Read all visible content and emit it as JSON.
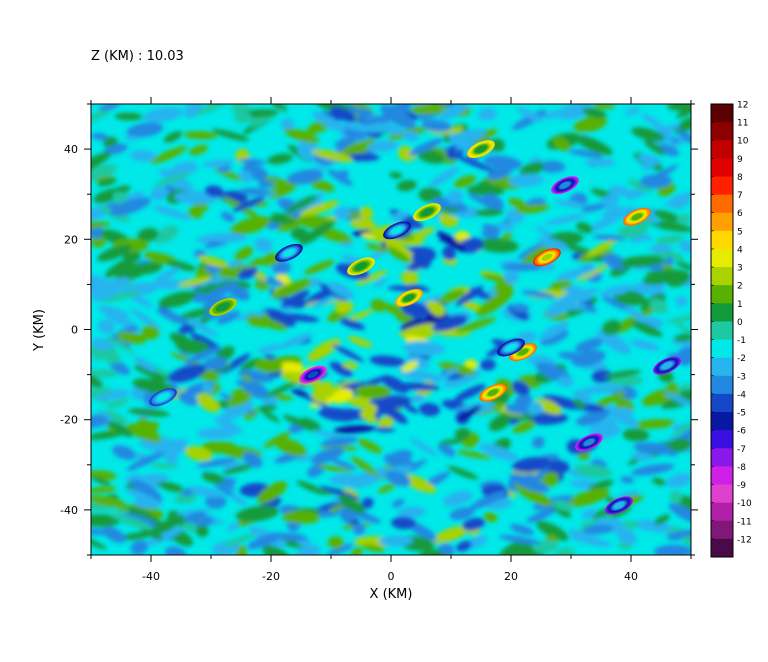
{
  "chart_data": {
    "type": "heatmap",
    "title": "Z (KM) : 10.03",
    "xlabel": "X (KM)",
    "ylabel": "Y (KM)",
    "xlim": [
      -50,
      50
    ],
    "ylim": [
      -50,
      50
    ],
    "x_ticks": [
      -40,
      -20,
      0,
      20,
      40
    ],
    "y_ticks": [
      -40,
      -20,
      0,
      20,
      40
    ],
    "colorbar": {
      "levels": [
        12,
        11,
        10,
        9,
        8,
        7,
        6,
        5,
        4,
        3,
        2,
        1,
        0,
        -1,
        -2,
        -3,
        -4,
        -5,
        -6,
        -7,
        -8,
        -9,
        -10,
        -11,
        -12
      ],
      "colors": [
        "#5a0000",
        "#8c0000",
        "#c00000",
        "#e00000",
        "#ff2000",
        "#ff6a00",
        "#ffa000",
        "#ffd800",
        "#e6ec00",
        "#a8d200",
        "#58b000",
        "#129a3a",
        "#1ec8a0",
        "#00e8e8",
        "#28b4ee",
        "#2288e0",
        "#1448c8",
        "#0818a0",
        "#3a10e0",
        "#8a18e8",
        "#d020e8",
        "#e040d0",
        "#b020a8",
        "#801878",
        "#4a0a48"
      ]
    },
    "background_value": -1,
    "features": [
      {
        "x": 26,
        "y": 16,
        "value": 8
      },
      {
        "x": 17,
        "y": -14,
        "value": 7
      },
      {
        "x": 22,
        "y": -5,
        "value": 7
      },
      {
        "x": 15,
        "y": 40,
        "value": 5
      },
      {
        "x": 6,
        "y": 26,
        "value": 4
      },
      {
        "x": -5,
        "y": 14,
        "value": 4
      },
      {
        "x": -13,
        "y": -10,
        "value": -9
      },
      {
        "x": 29,
        "y": 32,
        "value": -8
      },
      {
        "x": 41,
        "y": 25,
        "value": 7
      },
      {
        "x": 20,
        "y": -4,
        "value": -5
      },
      {
        "x": 1,
        "y": 22,
        "value": -5
      },
      {
        "x": -17,
        "y": 17,
        "value": -5
      },
      {
        "x": 38,
        "y": -39,
        "value": -7
      },
      {
        "x": 33,
        "y": -25,
        "value": -8
      },
      {
        "x": 46,
        "y": -8,
        "value": -7
      },
      {
        "x": -38,
        "y": -15,
        "value": -4
      },
      {
        "x": -28,
        "y": 5,
        "value": 3
      },
      {
        "x": 3,
        "y": 7,
        "value": 6
      }
    ]
  }
}
